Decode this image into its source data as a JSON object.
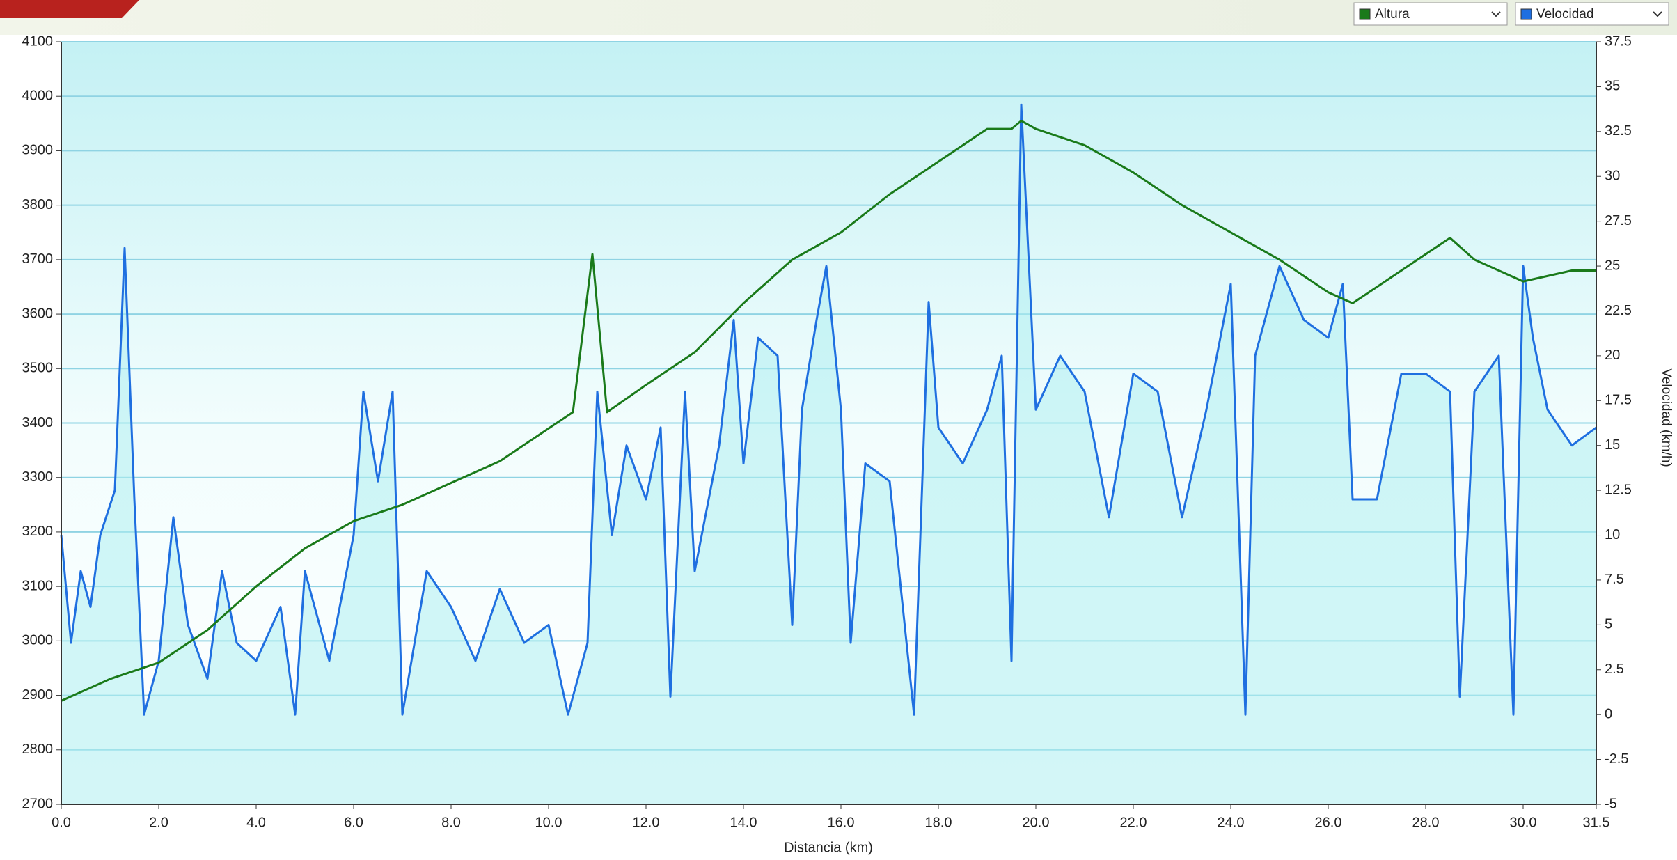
{
  "chart_data": {
    "type": "line",
    "x_label": "Distancia  (km)",
    "y2_label": "Velocidad (km/h)",
    "legend": "top-right",
    "grid": true,
    "xlim": [
      0,
      31.5
    ],
    "xticks": [
      {
        "value": 0,
        "label": "0.0"
      },
      {
        "value": 2,
        "label": "2.0"
      },
      {
        "value": 4,
        "label": "4.0"
      },
      {
        "value": 6,
        "label": "6.0"
      },
      {
        "value": 8,
        "label": "8.0"
      },
      {
        "value": 10,
        "label": "10.0"
      },
      {
        "value": 12,
        "label": "12.0"
      },
      {
        "value": 14,
        "label": "14.0"
      },
      {
        "value": 16,
        "label": "16.0"
      },
      {
        "value": 18,
        "label": "18.0"
      },
      {
        "value": 20,
        "label": "20.0"
      },
      {
        "value": 22,
        "label": "22.0"
      },
      {
        "value": 24,
        "label": "24.0"
      },
      {
        "value": 26,
        "label": "26.0"
      },
      {
        "value": 28,
        "label": "28.0"
      },
      {
        "value": 30,
        "label": "30.0"
      },
      31.5
    ],
    "ylim": [
      2700,
      4100
    ],
    "yticks": [
      2700,
      2800,
      2900,
      3000,
      3100,
      3200,
      3300,
      3400,
      3500,
      3600,
      3700,
      3800,
      3900,
      4000,
      4100
    ],
    "y2lim": [
      -5,
      37.5
    ],
    "y2ticks": [
      -5,
      -2.5,
      0,
      2.5,
      5,
      7.5,
      10,
      12.5,
      15,
      17.5,
      20,
      22.5,
      25,
      27.5,
      30,
      32.5,
      35,
      37.5
    ],
    "series": [
      {
        "name": "Altura",
        "color": "#1a7a1a",
        "x": [
          0,
          1,
          2,
          3,
          4,
          5,
          6,
          7,
          8,
          9,
          10,
          10.5,
          10.9,
          11.2,
          12,
          13,
          14,
          15,
          16,
          17,
          18,
          19,
          19.5,
          19.7,
          20,
          21,
          22,
          23,
          24,
          25,
          26,
          26.5,
          27,
          28,
          28.5,
          29,
          30,
          31,
          31.5
        ],
        "values": [
          2890,
          2930,
          2960,
          3020,
          3100,
          3170,
          3220,
          3250,
          3290,
          3330,
          3390,
          3420,
          3710,
          3420,
          3470,
          3530,
          3620,
          3700,
          3750,
          3820,
          3880,
          3940,
          3940,
          3955,
          3940,
          3910,
          3860,
          3800,
          3750,
          3700,
          3640,
          3620,
          3650,
          3710,
          3740,
          3700,
          3660,
          3680,
          3680
        ]
      },
      {
        "name": "Velocidad",
        "color": "#1f6fe0",
        "axis": "y2",
        "area": true,
        "x": [
          0,
          0.2,
          0.4,
          0.6,
          0.8,
          1.1,
          1.3,
          1.5,
          1.7,
          2,
          2.3,
          2.6,
          3,
          3.3,
          3.6,
          4,
          4.5,
          4.8,
          5,
          5.5,
          6,
          6.2,
          6.5,
          6.8,
          7,
          7.5,
          8,
          8.5,
          9,
          9.5,
          10,
          10.4,
          10.8,
          11,
          11.3,
          11.6,
          12,
          12.3,
          12.5,
          12.8,
          13,
          13.5,
          13.8,
          14,
          14.3,
          14.7,
          15,
          15.2,
          15.5,
          15.7,
          16,
          16.2,
          16.5,
          17,
          17.5,
          17.8,
          18,
          18.5,
          19,
          19.3,
          19.5,
          19.7,
          20,
          20.5,
          21,
          21.5,
          22,
          22.5,
          23,
          23.5,
          24,
          24.3,
          24.5,
          25,
          25.5,
          26,
          26.3,
          26.5,
          27,
          27.5,
          28,
          28.5,
          28.7,
          29,
          29.5,
          29.8,
          30,
          30.2,
          30.5,
          31,
          31.5
        ],
        "values": [
          10,
          4,
          8,
          6,
          10,
          12.5,
          26,
          12,
          0,
          3,
          11,
          5,
          2,
          8,
          4,
          3,
          6,
          0,
          8,
          3,
          10,
          18,
          13,
          18,
          0,
          8,
          6,
          3,
          7,
          4,
          5,
          0,
          4,
          18,
          10,
          15,
          12,
          16,
          1,
          18,
          8,
          15,
          22,
          14,
          21,
          20,
          5,
          17,
          22,
          25,
          17,
          4,
          14,
          13,
          0,
          23,
          16,
          14,
          17,
          20,
          3,
          34,
          17,
          20,
          18,
          11,
          19,
          18,
          11,
          17,
          24,
          0,
          20,
          25,
          22,
          21,
          24,
          12,
          12,
          19,
          19,
          18,
          1,
          18,
          20,
          0,
          25,
          21,
          17,
          15,
          16
        ]
      }
    ]
  }
}
